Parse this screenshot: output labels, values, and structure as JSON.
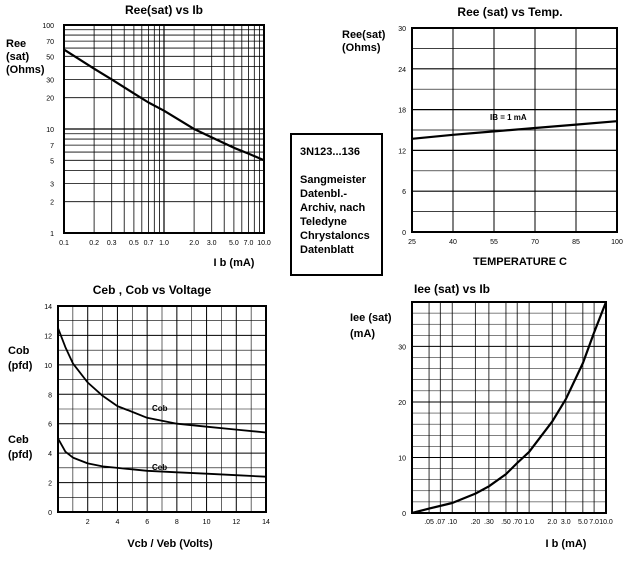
{
  "chart_data": [
    {
      "type": "line",
      "title": "Ree(sat) vs Ib",
      "ylabel": "Ree (sat) (Ohms)",
      "xlabel": "I b (mA)",
      "xscale": "log",
      "yscale": "log",
      "xlim": [
        0.1,
        10.0
      ],
      "ylim": [
        1,
        100
      ],
      "x_ticks": [
        "0.1",
        "0.2",
        "0.3",
        "0.5",
        "0.7",
        "1.0",
        "2.0",
        "3.0",
        "5.0",
        "7.0",
        "10.0"
      ],
      "y_ticks": [
        "1",
        "2",
        "3",
        "5",
        "7",
        "10",
        "20",
        "30",
        "50",
        "70",
        "100"
      ],
      "series": [
        {
          "x": [
            0.1,
            0.2,
            0.3,
            0.5,
            0.7,
            1.0,
            2.0,
            3.0,
            5.0,
            7.0,
            10.0
          ],
          "y": [
            58,
            38,
            30,
            22,
            18,
            15,
            10,
            8.3,
            6.6,
            5.8,
            5
          ]
        }
      ]
    },
    {
      "type": "line",
      "title": "Ree (sat) vs Temp.",
      "ylabel": "Ree(sat) (Ohms)",
      "xlabel": "TEMPERATURE C",
      "xlim": [
        25,
        100
      ],
      "ylim": [
        0,
        30
      ],
      "x_ticks": [
        "25",
        "40",
        "55",
        "70",
        "85",
        "100"
      ],
      "y_ticks": [
        "0",
        "6",
        "12",
        "18",
        "24",
        "30"
      ],
      "annotation": "IB = 1 mA",
      "series": [
        {
          "x": [
            25,
            40,
            55,
            70,
            85,
            100
          ],
          "y": [
            13.7,
            14.3,
            14.8,
            15.3,
            15.8,
            16.3
          ]
        }
      ]
    },
    {
      "type": "line",
      "title": "Ceb , Cob vs Voltage",
      "ylabel_top": "Cob (pfd)",
      "ylabel_bottom": "Ceb (pfd)",
      "xlabel": "Vcb / Veb (Volts)",
      "xlim": [
        0,
        14
      ],
      "ylim": [
        0,
        14
      ],
      "x_ticks": [
        "2",
        "4",
        "6",
        "8",
        "10",
        "12",
        "14"
      ],
      "y_ticks": [
        "0",
        "2",
        "4",
        "6",
        "8",
        "10",
        "12",
        "14"
      ],
      "series": [
        {
          "name": "Cob",
          "x": [
            0,
            0.5,
            1,
            2,
            3,
            4,
            5,
            6,
            8,
            10,
            12,
            14
          ],
          "y": [
            12.5,
            11.2,
            10.1,
            8.8,
            7.9,
            7.2,
            6.8,
            6.4,
            6.0,
            5.8,
            5.6,
            5.4
          ]
        },
        {
          "name": "Ceb",
          "x": [
            0,
            0.5,
            1,
            2,
            3,
            4,
            6,
            8,
            10,
            12,
            14
          ],
          "y": [
            5.0,
            4.1,
            3.7,
            3.3,
            3.1,
            3.0,
            2.8,
            2.7,
            2.6,
            2.5,
            2.4
          ]
        }
      ]
    },
    {
      "type": "line",
      "title": "Iee (sat) vs Ib",
      "ylabel": "Iee (sat) (mA)",
      "xlabel": "I b (mA)",
      "xscale": "log",
      "xlim": [
        0.03,
        10.0
      ],
      "ylim": [
        0,
        38
      ],
      "x_ticks": [
        ".05",
        ".07",
        ".10",
        ".20",
        ".30",
        ".50",
        ".70",
        "1.0",
        "2.0",
        "3.0",
        "5.0",
        "7.0",
        "10.0"
      ],
      "y_ticks": [
        "0",
        "10",
        "20",
        "30"
      ],
      "series": [
        {
          "x": [
            0.03,
            0.05,
            0.1,
            0.2,
            0.3,
            0.5,
            0.7,
            1.0,
            2.0,
            3.0,
            5.0,
            7.0,
            10.0
          ],
          "y": [
            0,
            0.8,
            1.8,
            3.5,
            4.8,
            7,
            9,
            11,
            16.5,
            20.5,
            27,
            32.5,
            38
          ]
        }
      ]
    }
  ],
  "annotations": {
    "chart1_ylabel_lines": [
      "Ree",
      "(sat)",
      "(Ohms)"
    ],
    "chart2_ylabel_lines": [
      "Ree(sat)",
      "(Ohms)"
    ],
    "chart3_cob_lines": [
      "Cob",
      "(pfd)"
    ],
    "chart3_ceb_lines": [
      "Ceb",
      "(pfd)"
    ],
    "chart3_cob_curve_label": "Cob",
    "chart3_ceb_curve_label": "Ceb",
    "chart4_ylabel_lines": [
      "Iee (sat)",
      "(mA)"
    ]
  },
  "info_box": {
    "part": "3N123...136",
    "lines": [
      "Sangmeister",
      "Datenbl.-",
      "Archiv, nach",
      "Teledyne",
      "Chrystaloncs",
      "Datenblatt"
    ]
  }
}
